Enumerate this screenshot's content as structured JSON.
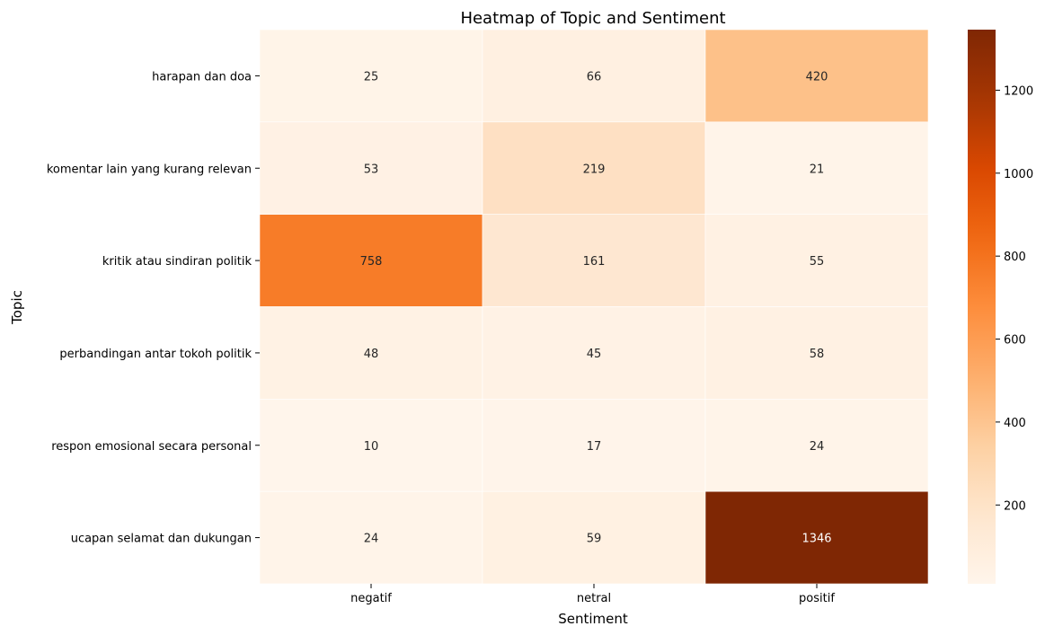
{
  "chart_data": {
    "type": "heatmap",
    "title": "Heatmap of Topic and Sentiment",
    "xlabel": "Sentiment",
    "ylabel": "Topic",
    "x_categories": [
      "negatif",
      "netral",
      "positif"
    ],
    "y_categories": [
      "harapan dan doa",
      "komentar lain yang kurang relevan",
      "kritik atau sindiran politik",
      "perbandingan antar tokoh politik",
      "respon emosional secara personal",
      "ucapan selamat dan dukungan"
    ],
    "values": [
      [
        25,
        66,
        420
      ],
      [
        53,
        219,
        21
      ],
      [
        758,
        161,
        55
      ],
      [
        48,
        45,
        58
      ],
      [
        10,
        17,
        24
      ],
      [
        24,
        59,
        1346
      ]
    ],
    "colorbar": {
      "colormap": "Oranges",
      "min": 10,
      "max": 1346,
      "ticks": [
        200,
        400,
        600,
        800,
        1000,
        1200
      ]
    },
    "grid": false,
    "cell_border_color": "#ffffff"
  }
}
